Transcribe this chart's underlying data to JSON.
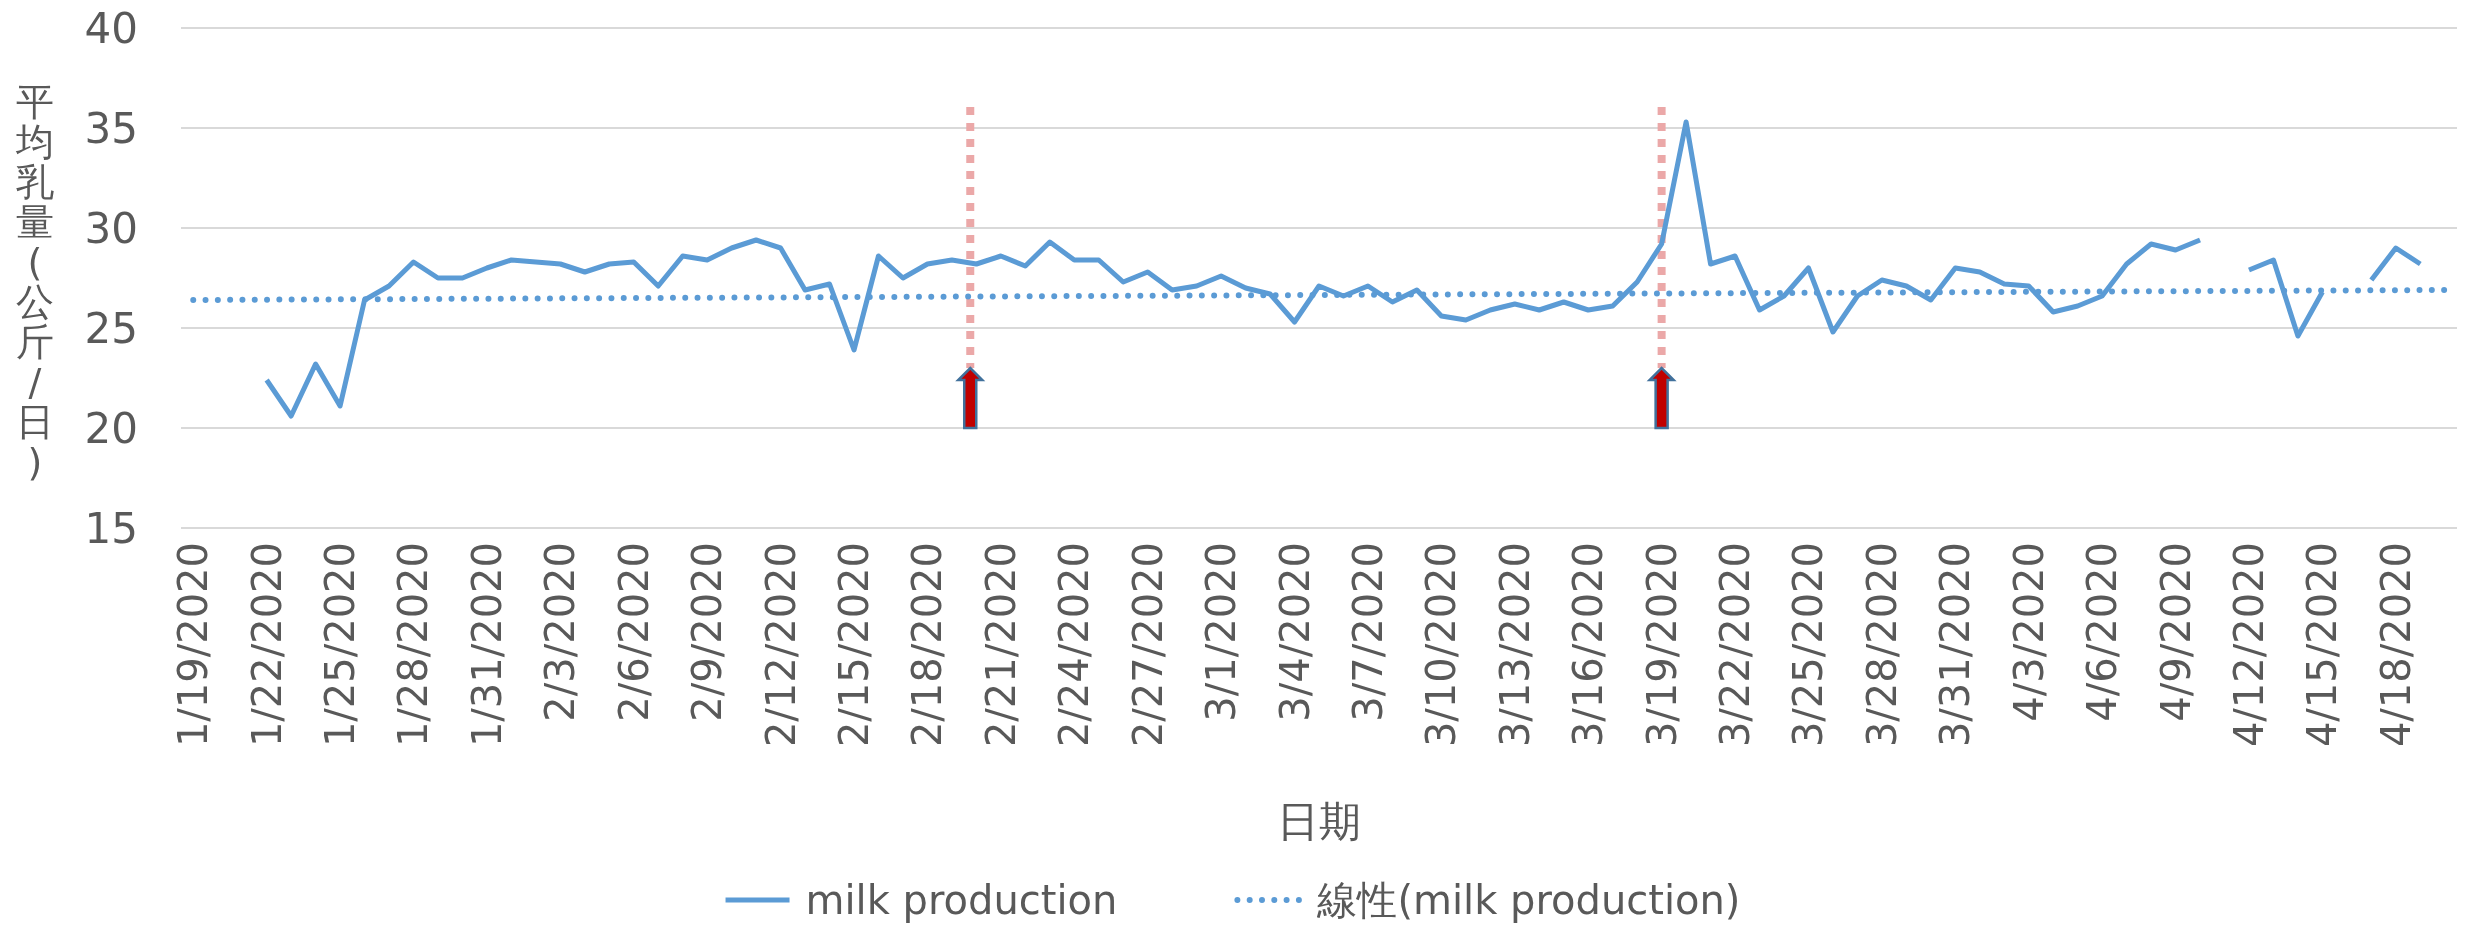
{
  "chart_data": {
    "type": "line",
    "xlabel": "日期",
    "ylabel": "平均乳量(公斤/日)",
    "series": [
      {
        "name": "milk production",
        "color": "#5b9bd5",
        "line_style": "solid",
        "x": [
          "2020-01-22",
          "2020-01-23",
          "2020-01-24",
          "2020-01-25",
          "2020-01-26",
          "2020-01-27",
          "2020-01-28",
          "2020-01-29",
          "2020-01-30",
          "2020-01-31",
          "2020-02-01",
          "2020-02-02",
          "2020-02-03",
          "2020-02-04",
          "2020-02-05",
          "2020-02-06",
          "2020-02-07",
          "2020-02-08",
          "2020-02-09",
          "2020-02-10",
          "2020-02-11",
          "2020-02-12",
          "2020-02-13",
          "2020-02-14",
          "2020-02-15",
          "2020-02-16",
          "2020-02-17",
          "2020-02-18",
          "2020-02-19",
          "2020-02-20",
          "2020-02-21",
          "2020-02-22",
          "2020-02-23",
          "2020-02-24",
          "2020-02-25",
          "2020-02-26",
          "2020-02-27",
          "2020-02-28",
          "2020-02-29",
          "2020-03-01",
          "2020-03-02",
          "2020-03-03",
          "2020-03-04",
          "2020-03-05",
          "2020-03-06",
          "2020-03-07",
          "2020-03-08",
          "2020-03-09",
          "2020-03-10",
          "2020-03-11",
          "2020-03-12",
          "2020-03-13",
          "2020-03-14",
          "2020-03-15",
          "2020-03-16",
          "2020-03-17",
          "2020-03-18",
          "2020-03-19",
          "2020-03-20",
          "2020-03-21",
          "2020-03-22",
          "2020-03-23",
          "2020-03-24",
          "2020-03-25",
          "2020-03-26",
          "2020-03-27",
          "2020-03-28",
          "2020-03-29",
          "2020-03-30",
          "2020-03-31",
          "2020-04-01",
          "2020-04-02",
          "2020-04-03",
          "2020-04-04",
          "2020-04-05",
          "2020-04-06",
          "2020-04-07",
          "2020-04-08",
          "2020-04-09",
          "2020-04-10",
          "2020-04-11",
          "2020-04-12",
          "2020-04-13",
          "2020-04-14",
          "2020-04-15",
          "2020-04-16",
          "2020-04-17",
          "2020-04-18",
          "2020-04-19"
        ],
        "values": [
          22.4,
          20.6,
          23.2,
          21.1,
          26.4,
          27.1,
          28.3,
          27.5,
          27.5,
          28.0,
          28.4,
          28.3,
          28.2,
          27.8,
          28.2,
          28.3,
          27.1,
          28.6,
          28.4,
          29.0,
          29.4,
          29.0,
          26.9,
          27.2,
          23.9,
          28.6,
          27.5,
          28.2,
          28.4,
          28.2,
          28.6,
          28.1,
          29.3,
          28.4,
          28.4,
          27.3,
          27.8,
          26.9,
          27.1,
          27.6,
          27.0,
          26.7,
          25.3,
          27.1,
          26.6,
          27.1,
          26.3,
          26.9,
          25.6,
          25.4,
          25.9,
          26.2,
          25.9,
          26.3,
          25.9,
          26.1,
          27.3,
          29.2,
          35.3,
          28.2,
          28.6,
          25.9,
          26.6,
          28.0,
          24.8,
          26.6,
          27.4,
          27.1,
          26.4,
          28.0,
          27.8,
          27.2,
          27.1,
          25.8,
          26.1,
          26.6,
          28.2,
          29.2,
          28.9,
          29.4,
          null,
          27.9,
          28.4,
          24.6,
          26.8,
          null,
          27.4,
          29.0,
          28.2
        ]
      },
      {
        "name": "線性(milk production)",
        "color": "#5b9bd5",
        "line_style": "dotted",
        "x": [
          "2020-01-19",
          "2020-04-20"
        ],
        "values": [
          26.4,
          26.9
        ]
      }
    ],
    "xlim": [
      "2020-01-18T12:00",
      "2020-04-20T12:00"
    ],
    "xticks": [
      {
        "value": "2020-01-19",
        "label": "1/19/2020"
      },
      {
        "value": "2020-01-22",
        "label": "1/22/2020"
      },
      {
        "value": "2020-01-25",
        "label": "1/25/2020"
      },
      {
        "value": "2020-01-28",
        "label": "1/28/2020"
      },
      {
        "value": "2020-01-31",
        "label": "1/31/2020"
      },
      {
        "value": "2020-02-03",
        "label": "2/3/2020"
      },
      {
        "value": "2020-02-06",
        "label": "2/6/2020"
      },
      {
        "value": "2020-02-09",
        "label": "2/9/2020"
      },
      {
        "value": "2020-02-12",
        "label": "2/12/2020"
      },
      {
        "value": "2020-02-15",
        "label": "2/15/2020"
      },
      {
        "value": "2020-02-18",
        "label": "2/18/2020"
      },
      {
        "value": "2020-02-21",
        "label": "2/21/2020"
      },
      {
        "value": "2020-02-24",
        "label": "2/24/2020"
      },
      {
        "value": "2020-02-27",
        "label": "2/27/2020"
      },
      {
        "value": "2020-03-01",
        "label": "3/1/2020"
      },
      {
        "value": "2020-03-04",
        "label": "3/4/2020"
      },
      {
        "value": "2020-03-07",
        "label": "3/7/2020"
      },
      {
        "value": "2020-03-10",
        "label": "3/10/2020"
      },
      {
        "value": "2020-03-13",
        "label": "3/13/2020"
      },
      {
        "value": "2020-03-16",
        "label": "3/16/2020"
      },
      {
        "value": "2020-03-19",
        "label": "3/19/2020"
      },
      {
        "value": "2020-03-22",
        "label": "3/22/2020"
      },
      {
        "value": "2020-03-25",
        "label": "3/25/2020"
      },
      {
        "value": "2020-03-28",
        "label": "3/28/2020"
      },
      {
        "value": "2020-03-31",
        "label": "3/31/2020"
      },
      {
        "value": "2020-04-03",
        "label": "4/3/2020"
      },
      {
        "value": "2020-04-06",
        "label": "4/6/2020"
      },
      {
        "value": "2020-04-09",
        "label": "4/9/2020"
      },
      {
        "value": "2020-04-12",
        "label": "4/12/2020"
      },
      {
        "value": "2020-04-15",
        "label": "4/15/2020"
      },
      {
        "value": "2020-04-18",
        "label": "4/18/2020"
      }
    ],
    "ylim": [
      15,
      40
    ],
    "yticks": [
      15,
      20,
      25,
      30,
      35,
      40
    ],
    "grid": "y",
    "legend": "bottom",
    "ref_lines": [
      {
        "axis": "x",
        "value": "2020-02-19T18:00",
        "color": "#eba8a8",
        "line_style": "dotted"
      },
      {
        "axis": "x",
        "value": "2020-03-19",
        "color": "#eba8a8",
        "line_style": "dotted"
      }
    ]
  }
}
